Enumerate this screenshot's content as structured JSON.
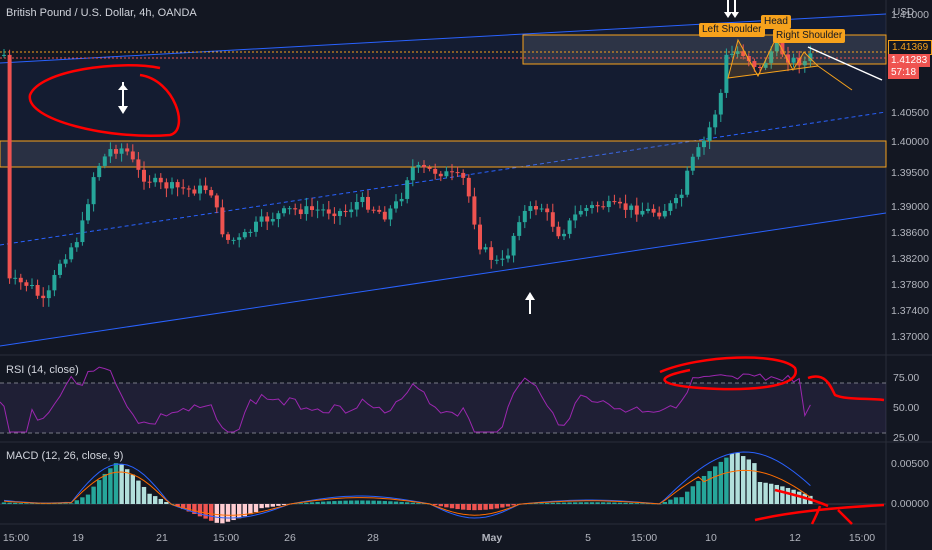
{
  "chart_title": "British Pound / U.S. Dollar, 4h, OANDA",
  "currency": "USD",
  "price_axis": [
    "1.41000",
    "1.40500",
    "1.40000",
    "1.39500",
    "1.39000",
    "1.38600",
    "1.38200",
    "1.37800",
    "1.37400",
    "1.37000"
  ],
  "price_tags": {
    "upper": "1.41369",
    "current": "1.41283",
    "countdown": "57:18"
  },
  "annotations": {
    "left_shoulder": "Left Shoulder",
    "head": "Head",
    "right_shoulder": "Right Shoulder"
  },
  "rsi": {
    "label": "RSI (14, close)",
    "axis": [
      "75.00",
      "50.00",
      "25.00"
    ]
  },
  "macd": {
    "label": "MACD (12, 26, close, 9)",
    "axis": [
      "0.00500",
      "0.00000"
    ]
  },
  "time_axis": [
    "15:00",
    "19",
    "21",
    "15:00",
    "26",
    "28",
    "May",
    "5",
    "15:00",
    "10",
    "12",
    "15:00"
  ],
  "colors": {
    "background": "#131722",
    "up": "#26a69a",
    "down": "#ef5350",
    "channel": "#2962ff",
    "zone": "#f7a21c",
    "rsi": "#9c27b0",
    "macd": "#2962ff",
    "signal": "#ff6d00",
    "markup": "#ff0000"
  }
}
